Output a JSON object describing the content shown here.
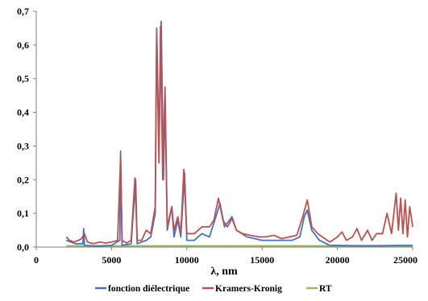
{
  "chart_data": {
    "type": "line",
    "title": "",
    "xlabel": "λ, nm",
    "ylabel": "",
    "xlim": [
      0,
      25000
    ],
    "ylim": [
      0,
      0.7
    ],
    "x_ticks": [
      "0",
      "5000",
      "10000",
      "15000",
      "20000",
      "25000"
    ],
    "y_ticks": [
      "0,0",
      "0,1",
      "0,2",
      "0,3",
      "0,4",
      "0,5",
      "0,6",
      "0,7"
    ],
    "grid": false,
    "legend_position": "bottom",
    "series": [
      {
        "name": "fonction diélectrique",
        "color": "#4472C4",
        "points": [
          [
            2000,
            0.02
          ],
          [
            2600,
            0.01
          ],
          [
            3100,
            0.01
          ],
          [
            3150,
            0.055
          ],
          [
            3200,
            0.005
          ],
          [
            4000,
            0.003
          ],
          [
            5000,
            0.005
          ],
          [
            5550,
            0.02
          ],
          [
            5600,
            0.285
          ],
          [
            5700,
            0.005
          ],
          [
            6300,
            0.01
          ],
          [
            6600,
            0.2
          ],
          [
            6700,
            0.01
          ],
          [
            7300,
            0.02
          ],
          [
            7600,
            0.03
          ],
          [
            7900,
            0.1
          ],
          [
            8000,
            0.65
          ],
          [
            8150,
            0.3
          ],
          [
            8300,
            0.67
          ],
          [
            8450,
            0.2
          ],
          [
            8550,
            0.45
          ],
          [
            8700,
            0.05
          ],
          [
            9000,
            0.12
          ],
          [
            9150,
            0.03
          ],
          [
            9400,
            0.08
          ],
          [
            9600,
            0.03
          ],
          [
            9850,
            0.22
          ],
          [
            10000,
            0.02
          ],
          [
            10500,
            0.02
          ],
          [
            11000,
            0.04
          ],
          [
            11500,
            0.03
          ],
          [
            12000,
            0.1
          ],
          [
            12200,
            0.13
          ],
          [
            12500,
            0.06
          ],
          [
            13000,
            0.09
          ],
          [
            13300,
            0.05
          ],
          [
            14000,
            0.03
          ],
          [
            15000,
            0.02
          ],
          [
            16000,
            0.02
          ],
          [
            17000,
            0.02
          ],
          [
            17500,
            0.03
          ],
          [
            17800,
            0.09
          ],
          [
            18000,
            0.11
          ],
          [
            18300,
            0.05
          ],
          [
            18800,
            0.02
          ],
          [
            19500,
            0.005
          ],
          [
            20000,
            0.005
          ],
          [
            21000,
            0.004
          ],
          [
            22000,
            0.004
          ],
          [
            23000,
            0.004
          ],
          [
            24000,
            0.005
          ],
          [
            25000,
            0.005
          ]
        ]
      },
      {
        "name": "Kramers-Kronig",
        "color": "#C0504D",
        "points": [
          [
            2000,
            0.03
          ],
          [
            2200,
            0.02
          ],
          [
            2500,
            0.015
          ],
          [
            2800,
            0.02
          ],
          [
            3000,
            0.025
          ],
          [
            3200,
            0.04
          ],
          [
            3400,
            0.015
          ],
          [
            3800,
            0.01
          ],
          [
            4200,
            0.015
          ],
          [
            4600,
            0.012
          ],
          [
            5000,
            0.015
          ],
          [
            5400,
            0.02
          ],
          [
            5600,
            0.265
          ],
          [
            5700,
            0.02
          ],
          [
            6000,
            0.012
          ],
          [
            6300,
            0.02
          ],
          [
            6550,
            0.205
          ],
          [
            6700,
            0.02
          ],
          [
            7000,
            0.02
          ],
          [
            7300,
            0.05
          ],
          [
            7600,
            0.04
          ],
          [
            7900,
            0.12
          ],
          [
            8000,
            0.64
          ],
          [
            8150,
            0.25
          ],
          [
            8250,
            0.655
          ],
          [
            8400,
            0.2
          ],
          [
            8550,
            0.475
          ],
          [
            8700,
            0.06
          ],
          [
            9000,
            0.12
          ],
          [
            9150,
            0.05
          ],
          [
            9400,
            0.09
          ],
          [
            9600,
            0.04
          ],
          [
            9800,
            0.23
          ],
          [
            10000,
            0.04
          ],
          [
            10500,
            0.04
          ],
          [
            11000,
            0.06
          ],
          [
            11500,
            0.06
          ],
          [
            11800,
            0.08
          ],
          [
            12100,
            0.145
          ],
          [
            12400,
            0.08
          ],
          [
            12700,
            0.06
          ],
          [
            13000,
            0.085
          ],
          [
            13300,
            0.05
          ],
          [
            13700,
            0.04
          ],
          [
            14200,
            0.035
          ],
          [
            14800,
            0.03
          ],
          [
            15200,
            0.03
          ],
          [
            15800,
            0.035
          ],
          [
            16300,
            0.025
          ],
          [
            16800,
            0.03
          ],
          [
            17300,
            0.035
          ],
          [
            17700,
            0.09
          ],
          [
            18000,
            0.14
          ],
          [
            18300,
            0.06
          ],
          [
            18700,
            0.04
          ],
          [
            19000,
            0.03
          ],
          [
            19500,
            0.015
          ],
          [
            20000,
            0.03
          ],
          [
            20300,
            0.045
          ],
          [
            20600,
            0.02
          ],
          [
            21000,
            0.03
          ],
          [
            21300,
            0.055
          ],
          [
            21600,
            0.02
          ],
          [
            22000,
            0.05
          ],
          [
            22300,
            0.02
          ],
          [
            22600,
            0.04
          ],
          [
            23000,
            0.04
          ],
          [
            23300,
            0.1
          ],
          [
            23600,
            0.04
          ],
          [
            23900,
            0.16
          ],
          [
            24050,
            0.05
          ],
          [
            24200,
            0.145
          ],
          [
            24350,
            0.04
          ],
          [
            24500,
            0.14
          ],
          [
            24650,
            0.03
          ],
          [
            24800,
            0.12
          ],
          [
            25000,
            0.06
          ]
        ]
      },
      {
        "name": "RT",
        "color": "#9BBB59",
        "points": [
          [
            2000,
            0.003
          ],
          [
            5000,
            0.003
          ],
          [
            10000,
            0.003
          ],
          [
            15000,
            0.003
          ],
          [
            20000,
            0.003
          ],
          [
            25000,
            0.003
          ]
        ]
      }
    ]
  }
}
